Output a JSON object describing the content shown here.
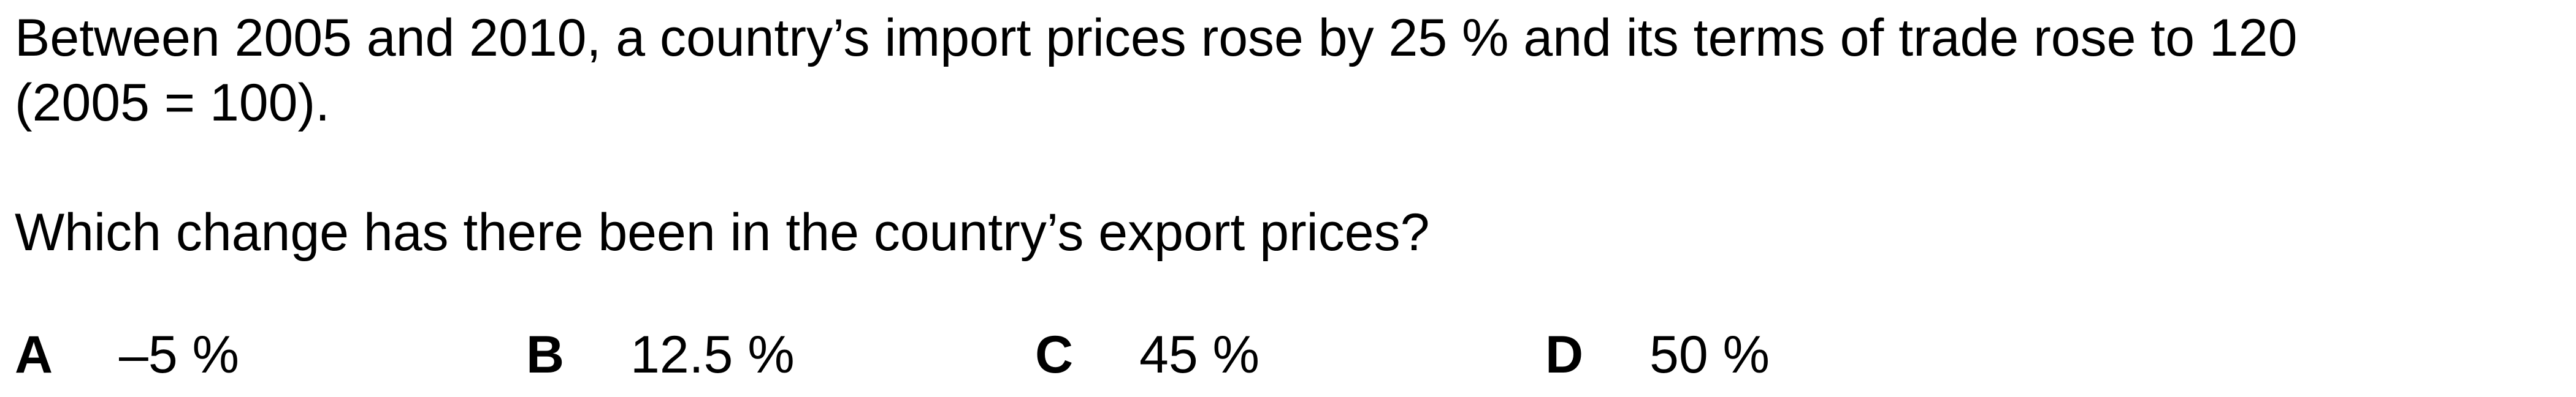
{
  "question": {
    "stem_line1": "Between 2005 and 2010, a country’s import prices rose by 25 % and its terms of trade rose to 120",
    "stem_line2": "(2005 = 100).",
    "prompt": "Which change has there been in the country’s export prices?"
  },
  "options": [
    {
      "letter": "A",
      "text": "–5 %"
    },
    {
      "letter": "B",
      "text": "12.5 %"
    },
    {
      "letter": "C",
      "text": "45 %"
    },
    {
      "letter": "D",
      "text": "50 %"
    }
  ]
}
